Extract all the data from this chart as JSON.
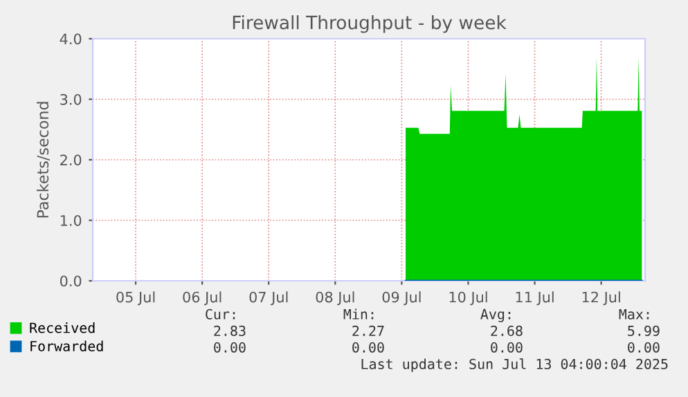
{
  "chart_data": {
    "type": "area",
    "title": "Firewall Throughput - by week",
    "ylabel": "Packets/second",
    "x": [
      "2025-07-09T13:25",
      "2025-07-09T18:00",
      "2025-07-09T18:30",
      "2025-07-10T05:20",
      "2025-07-10T05:40",
      "2025-07-10T06:10",
      "2025-07-11T01:00",
      "2025-07-11T01:30",
      "2025-07-11T02:00",
      "2025-07-11T06:00",
      "2025-07-11T06:30",
      "2025-07-11T07:00",
      "2025-07-12T05:00",
      "2025-07-12T05:20",
      "2025-07-12T10:00",
      "2025-07-12T10:20",
      "2025-07-12T10:40",
      "2025-07-13T01:10",
      "2025-07-13T01:30",
      "2025-07-13T01:50",
      "2025-07-13T02:40"
    ],
    "series": [
      {
        "name": "Received",
        "color": "#00cc00",
        "values": [
          2.53,
          2.53,
          2.43,
          2.43,
          3.23,
          2.81,
          2.81,
          3.42,
          2.53,
          2.53,
          2.75,
          2.53,
          2.53,
          2.81,
          2.81,
          3.69,
          2.81,
          2.81,
          3.69,
          2.81,
          2.81
        ]
      },
      {
        "name": "Forwarded",
        "color": "#0066b3",
        "type": "line",
        "values": [
          0,
          0,
          0,
          0,
          0,
          0,
          0,
          0,
          0,
          0,
          0,
          0,
          0,
          0,
          0,
          0,
          0,
          0,
          0,
          0,
          0
        ]
      }
    ],
    "xlim": [
      "2025-07-04T20:30",
      "2025-07-13T03:50"
    ],
    "xticks": [
      {
        "value": "2025-07-05T12:00",
        "label": "05 Jul"
      },
      {
        "value": "2025-07-06T12:00",
        "label": "06 Jul"
      },
      {
        "value": "2025-07-07T12:00",
        "label": "07 Jul"
      },
      {
        "value": "2025-07-08T12:00",
        "label": "08 Jul"
      },
      {
        "value": "2025-07-09T12:00",
        "label": "09 Jul"
      },
      {
        "value": "2025-07-10T12:00",
        "label": "10 Jul"
      },
      {
        "value": "2025-07-11T12:00",
        "label": "11 Jul"
      },
      {
        "value": "2025-07-12T12:00",
        "label": "12 Jul"
      }
    ],
    "ylim": [
      0,
      4
    ],
    "yticks": [
      {
        "value": 0,
        "label": "0.0"
      },
      {
        "value": 1,
        "label": "1.0"
      },
      {
        "value": 2,
        "label": "2.0"
      },
      {
        "value": 3,
        "label": "3.0"
      },
      {
        "value": 4,
        "label": "4.0"
      }
    ],
    "grid": true,
    "legend": "bottom",
    "annotations": [
      "Cur:",
      "Min:",
      "Avg:",
      "Max:",
      "2.83",
      "2.27",
      "2.68",
      "5.99",
      "0.00",
      "0.00",
      "0.00",
      "0.00",
      "Last update: Sun Jul 13 04:00:04 2025"
    ]
  }
}
